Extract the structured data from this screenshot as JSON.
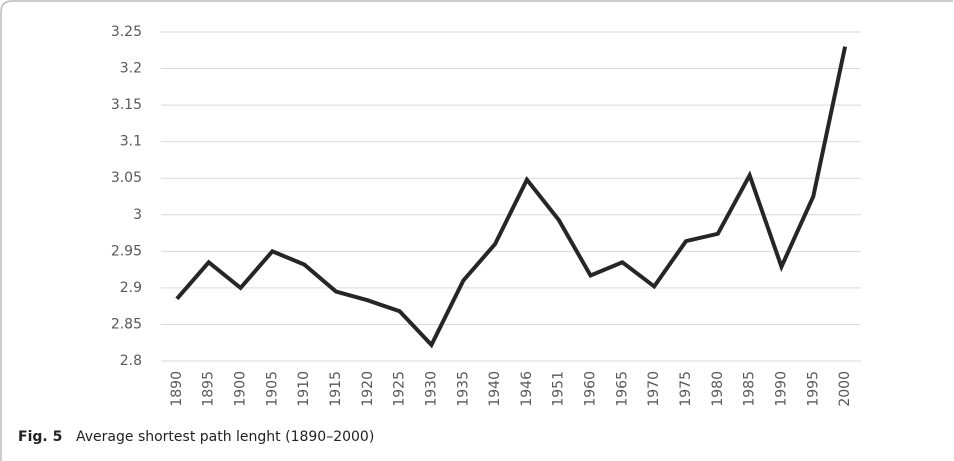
{
  "chart_data": {
    "type": "line",
    "categories": [
      "1890",
      "1895",
      "1900",
      "1905",
      "1910",
      "1915",
      "1920",
      "1925",
      "1930",
      "1935",
      "1940",
      "1946",
      "1951",
      "1960",
      "1965",
      "1970",
      "1975",
      "1980",
      "1985",
      "1990",
      "1995",
      "2000"
    ],
    "series": [
      {
        "color": "#262626",
        "values": [
          2.885,
          2.935,
          2.9,
          2.95,
          2.932,
          2.895,
          2.883,
          2.868,
          2.822,
          2.91,
          2.96,
          3.048,
          2.993,
          2.917,
          2.935,
          2.902,
          2.964,
          2.974,
          3.054,
          2.929,
          3.025,
          3.23
        ]
      }
    ],
    "ylim": [
      2.8,
      3.25
    ],
    "yticks": [
      2.8,
      2.85,
      2.9,
      2.95,
      3,
      3.05,
      3.1,
      3.15,
      3.2,
      3.25
    ],
    "grid": true,
    "caption_label": "Fig. 5",
    "caption": "Average shortest path lenght (1890–2000)"
  }
}
